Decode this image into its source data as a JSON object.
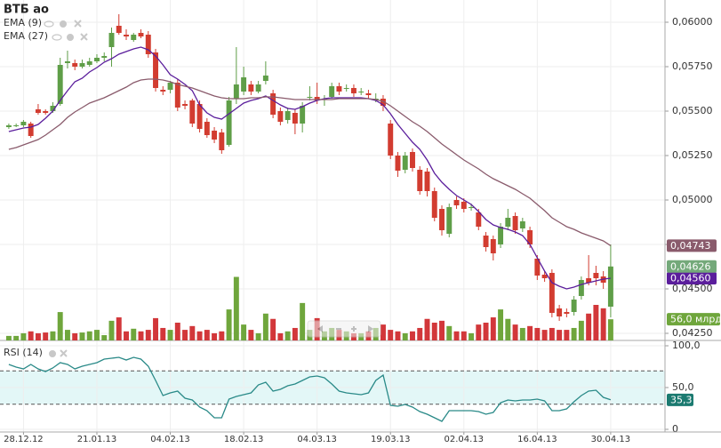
{
  "chart_data": [
    {
      "type": "candlestick",
      "title": "ВТБ ао",
      "xlim": [
        -1.2,
        89.4
      ],
      "xticks": [
        {
          "value": 2,
          "label": "28.12.12"
        },
        {
          "value": 12,
          "label": "21.01.13"
        },
        {
          "value": 22,
          "label": "04.02.13"
        },
        {
          "value": 32,
          "label": "18.02.13"
        },
        {
          "value": 42,
          "label": "04.03.13"
        },
        {
          "value": 52,
          "label": "19.03.13"
        },
        {
          "value": 62,
          "label": "02.04.13"
        },
        {
          "value": 72,
          "label": "16.04.13"
        },
        {
          "value": 82,
          "label": "30.04.13"
        }
      ],
      "ylim": [
        0.0421,
        0.06125
      ],
      "yticks": [
        {
          "value": 0.0425,
          "label": "0,04250"
        },
        {
          "value": 0.045,
          "label": "0,04500"
        },
        {
          "value": 0.0475,
          "label": "0,04750"
        },
        {
          "value": 0.05,
          "label": "0,05000"
        },
        {
          "value": 0.0525,
          "label": "0,05250"
        },
        {
          "value": 0.055,
          "label": "0,05500"
        },
        {
          "value": 0.0575,
          "label": "0,05750"
        },
        {
          "value": 0.06,
          "label": "0,06000"
        }
      ],
      "grid": true,
      "up_color": "#5f9e48",
      "down_color": "#d23c30",
      "open": [
        0.0541,
        0.0542,
        0.0542,
        0.0543,
        0.0551,
        0.055,
        0.055,
        0.0554,
        0.0577,
        0.0577,
        0.0575,
        0.0576,
        0.0578,
        0.058,
        0.0586,
        0.0598,
        0.0593,
        0.059,
        0.0594,
        0.0593,
        0.0583,
        0.0562,
        0.0562,
        0.0566,
        0.0554,
        0.0556,
        0.0554,
        0.0544,
        0.0539,
        0.0538,
        0.0531,
        0.0557,
        0.0561,
        0.0565,
        0.0561,
        0.0567,
        0.056,
        0.055,
        0.0545,
        0.0549,
        0.0543,
        0.0558,
        0.0558,
        0.0557,
        0.0558,
        0.0564,
        0.0563,
        0.0563,
        0.0561,
        0.056,
        0.0557,
        0.0557,
        0.0543,
        0.0525,
        0.0517,
        0.0527,
        0.0517,
        0.0516,
        0.0505,
        0.0495,
        0.0481,
        0.05,
        0.0499,
        0.0496,
        0.0493,
        0.048,
        0.0478,
        0.0475,
        0.0485,
        0.0491,
        0.0484,
        0.0483,
        0.0467,
        0.0458,
        0.0459,
        0.0439,
        0.0437,
        0.0437,
        0.0446,
        0.0456,
        0.0459,
        0.0457,
        0.044
      ],
      "high": [
        0.0543,
        0.0543,
        0.0545,
        0.0544,
        0.0554,
        0.0551,
        0.0555,
        0.058,
        0.0584,
        0.0579,
        0.0579,
        0.058,
        0.0582,
        0.0583,
        0.0597,
        0.06045,
        0.0596,
        0.0594,
        0.0596,
        0.0595,
        0.0585,
        0.0564,
        0.0567,
        0.0568,
        0.0556,
        0.0557,
        0.0556,
        0.0546,
        0.0541,
        0.054,
        0.0558,
        0.0586,
        0.0575,
        0.0567,
        0.0567,
        0.0578,
        0.0562,
        0.0552,
        0.0552,
        0.0551,
        0.0555,
        0.0564,
        0.0566,
        0.0559,
        0.0566,
        0.0566,
        0.0565,
        0.0565,
        0.0563,
        0.0562,
        0.056,
        0.0559,
        0.0545,
        0.0527,
        0.0527,
        0.0529,
        0.0519,
        0.0518,
        0.0507,
        0.0497,
        0.0498,
        0.0502,
        0.0501,
        0.0498,
        0.0495,
        0.0482,
        0.048,
        0.0487,
        0.0495,
        0.0493,
        0.049,
        0.0485,
        0.0469,
        0.046,
        0.0461,
        0.0441,
        0.0439,
        0.0446,
        0.0457,
        0.0469,
        0.0463,
        0.046,
        0.0475
      ],
      "low": [
        0.054,
        0.0541,
        0.0541,
        0.0535,
        0.0548,
        0.0548,
        0.0549,
        0.0553,
        0.0574,
        0.0573,
        0.0574,
        0.0575,
        0.0577,
        0.0578,
        0.0575,
        0.0593,
        0.059,
        0.0589,
        0.0591,
        0.058,
        0.0561,
        0.0559,
        0.056,
        0.055,
        0.0551,
        0.0541,
        0.0538,
        0.0535,
        0.0532,
        0.0526,
        0.053,
        0.0554,
        0.0559,
        0.0559,
        0.056,
        0.0565,
        0.0546,
        0.0542,
        0.0543,
        0.0537,
        0.0538,
        0.0556,
        0.0554,
        0.0553,
        0.0557,
        0.0559,
        0.0561,
        0.0558,
        0.0559,
        0.0557,
        0.0555,
        0.055,
        0.0523,
        0.0513,
        0.0515,
        0.0516,
        0.0503,
        0.0502,
        0.0488,
        0.048,
        0.0479,
        0.0495,
        0.0493,
        0.0494,
        0.0483,
        0.0471,
        0.0466,
        0.0473,
        0.0483,
        0.0481,
        0.0482,
        0.0473,
        0.0455,
        0.0454,
        0.0434,
        0.0432,
        0.0434,
        0.0435,
        0.0444,
        0.0452,
        0.0452,
        0.045,
        0.0434
      ],
      "close": [
        0.0542,
        0.0542,
        0.0544,
        0.0536,
        0.0549,
        0.0549,
        0.0553,
        0.0576,
        0.0578,
        0.0575,
        0.0577,
        0.0578,
        0.058,
        0.0581,
        0.0594,
        0.0594,
        0.0592,
        0.0593,
        0.0592,
        0.0582,
        0.0563,
        0.0561,
        0.0566,
        0.0552,
        0.0553,
        0.0543,
        0.054,
        0.05365,
        0.0534,
        0.0528,
        0.0556,
        0.0565,
        0.0569,
        0.0561,
        0.0565,
        0.057,
        0.0548,
        0.0544,
        0.055,
        0.0543,
        0.0553,
        0.0558,
        0.0556,
        0.0557,
        0.0564,
        0.0561,
        0.0563,
        0.056,
        0.0561,
        0.0559,
        0.0557,
        0.0553,
        0.0525,
        0.05165,
        0.0525,
        0.0518,
        0.0505,
        0.0505,
        0.049,
        0.0483,
        0.0496,
        0.0497,
        0.0495,
        0.0496,
        0.0485,
        0.04735,
        0.047,
        0.0485,
        0.049,
        0.0483,
        0.0488,
        0.0475,
        0.04575,
        0.0456,
        0.04365,
        0.04345,
        0.0436,
        0.0444,
        0.0455,
        0.04535,
        0.0456,
        0.04535,
        0.04626
      ],
      "last_value_label": "0,04626",
      "label_color": "#74a97a",
      "overlays": [
        {
          "name": "EMA (9)",
          "color": "#5b1e9c",
          "last_value_label": "0,04560",
          "values": [
            0.05385,
            0.05395,
            0.05405,
            0.0541,
            0.05425,
            0.0546,
            0.055,
            0.0556,
            0.05615,
            0.05665,
            0.05685,
            0.0572,
            0.05745,
            0.05775,
            0.05795,
            0.0582,
            0.05835,
            0.0585,
            0.0586,
            0.05845,
            0.0581,
            0.0576,
            0.05705,
            0.0568,
            0.0565,
            0.05615,
            0.05535,
            0.0549,
            0.05465,
            0.05455,
            0.05485,
            0.05515,
            0.05545,
            0.0556,
            0.0557,
            0.05585,
            0.0556,
            0.05535,
            0.05515,
            0.0551,
            0.05525,
            0.05545,
            0.0556,
            0.0557,
            0.05575,
            0.05575,
            0.05575,
            0.05575,
            0.05575,
            0.0557,
            0.0556,
            0.05535,
            0.05485,
            0.05425,
            0.05375,
            0.05325,
            0.05285,
            0.05225,
            0.0515,
            0.051,
            0.0506,
            0.05025,
            0.05,
            0.04975,
            0.04935,
            0.0489,
            0.0486,
            0.04845,
            0.04835,
            0.0482,
            0.048,
            0.0475,
            0.04675,
            0.046,
            0.04535,
            0.04515,
            0.045,
            0.0451,
            0.04525,
            0.04535,
            0.04545,
            0.04555,
            0.0456
          ]
        },
        {
          "name": "EMA (27)",
          "color": "#8a5b6c",
          "last_value_label": "0,04743",
          "values": [
            0.05285,
            0.05295,
            0.0531,
            0.05325,
            0.0534,
            0.05365,
            0.05395,
            0.05425,
            0.05465,
            0.05495,
            0.0552,
            0.05545,
            0.0556,
            0.05575,
            0.05595,
            0.05615,
            0.05635,
            0.0566,
            0.05675,
            0.0568,
            0.0568,
            0.05675,
            0.05665,
            0.0565,
            0.0564,
            0.0563,
            0.05615,
            0.056,
            0.05585,
            0.05575,
            0.0557,
            0.0557,
            0.0557,
            0.05575,
            0.05575,
            0.0558,
            0.0558,
            0.05575,
            0.0557,
            0.05565,
            0.05565,
            0.05565,
            0.05565,
            0.05565,
            0.05565,
            0.0557,
            0.0557,
            0.0557,
            0.0557,
            0.0557,
            0.05565,
            0.05555,
            0.0553,
            0.055,
            0.0547,
            0.0544,
            0.05415,
            0.05385,
            0.0535,
            0.05315,
            0.05285,
            0.05255,
            0.05225,
            0.052,
            0.05175,
            0.05145,
            0.0512,
            0.051,
            0.0508,
            0.0506,
            0.05035,
            0.0501,
            0.04975,
            0.0494,
            0.049,
            0.04875,
            0.0485,
            0.04835,
            0.04815,
            0.048,
            0.04785,
            0.0477,
            0.04743
          ]
        }
      ],
      "volume": {
        "vlim": [
          0,
          900
        ],
        "up_color": "#6fa63c",
        "down_color": "#d2373a",
        "last_value_label": "56,0 млрд",
        "values": [
          12,
          12,
          19,
          24,
          19,
          21,
          24,
          75,
          28,
          19,
          21,
          24,
          28,
          14,
          52,
          61,
          24,
          31,
          24,
          28,
          59,
          33,
          28,
          47,
          28,
          38,
          24,
          28,
          19,
          24,
          82,
          168,
          42,
          28,
          19,
          71,
          57,
          19,
          24,
          33,
          99,
          28,
          59,
          24,
          33,
          28,
          24,
          19,
          19,
          24,
          33,
          42,
          28,
          24,
          19,
          24,
          33,
          57,
          47,
          52,
          38,
          24,
          24,
          19,
          42,
          47,
          61,
          82,
          57,
          42,
          33,
          38,
          33,
          28,
          33,
          28,
          28,
          33,
          52,
          71,
          94,
          85,
          56
        ]
      }
    },
    {
      "type": "line",
      "title": "RSI (14)",
      "color": "#2a8a88",
      "label_color": "#1b7a70",
      "ylim": [
        0,
        100
      ],
      "yticks": [
        0,
        {
          "value": 50,
          "label": "50,0"
        },
        {
          "value": 100,
          "label": "100,0"
        }
      ],
      "levels": [
        30,
        70
      ],
      "band_color": "#e3f7f7",
      "last_value_label": "35,3",
      "values": [
        77.7,
        74.5,
        72.3,
        77.7,
        72.3,
        69.1,
        73.4,
        79.8,
        77.7,
        72.3,
        75.5,
        77.7,
        79.8,
        84,
        85.1,
        86.2,
        83,
        86.2,
        84,
        75.5,
        58.5,
        40.4,
        43.6,
        45.7,
        37.2,
        35.1,
        26.6,
        22.3,
        13.8,
        13.8,
        36.2,
        39.4,
        41.5,
        43.6,
        53.2,
        56.4,
        45.7,
        47.9,
        52.1,
        54.3,
        58.5,
        62.8,
        63.8,
        61.7,
        54.3,
        45.7,
        43.6,
        42.6,
        41.5,
        43.6,
        58.5,
        64.9,
        28.7,
        27.7,
        29.8,
        26.6,
        21.3,
        18.1,
        13.8,
        9.6,
        22.3,
        22.3,
        22.3,
        22.3,
        21.3,
        18.1,
        20.2,
        31.9,
        35.1,
        34,
        35.1,
        35.1,
        36.2,
        34,
        22.3,
        22.3,
        24.5,
        33,
        40.4,
        45.7,
        46.8,
        38.3,
        35.3
      ]
    }
  ]
}
